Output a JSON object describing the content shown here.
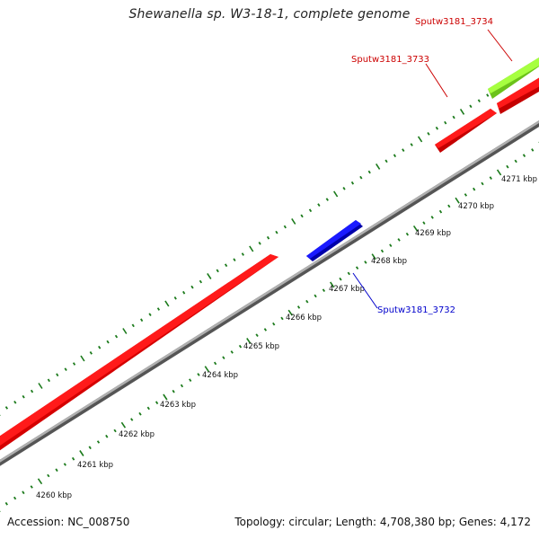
{
  "title": "Shewanella sp. W3-18-1, complete genome",
  "footer": {
    "accession": "Accession: NC_008750",
    "summary": "Topology: circular; Length: 4,708,380 bp; Genes: 4,172"
  },
  "colors": {
    "forward_gene": "#ff0000",
    "reverse_gene": "#0000ff",
    "rna_gene": "#99ff33",
    "backbone": "#8a8a8a",
    "ticks": "#1b7a1b",
    "label_red": "#cc0000",
    "label_blue": "#0000cc"
  },
  "scale_ticks": [
    {
      "label": "4260 kbp"
    },
    {
      "label": "4261 kbp"
    },
    {
      "label": "4262 kbp"
    },
    {
      "label": "4263 kbp"
    },
    {
      "label": "4264 kbp"
    },
    {
      "label": "4265 kbp"
    },
    {
      "label": "4266 kbp"
    },
    {
      "label": "4267 kbp"
    },
    {
      "label": "4268 kbp"
    },
    {
      "label": "4269 kbp"
    },
    {
      "label": "4270 kbp"
    },
    {
      "label": "4271 kbp"
    }
  ],
  "gene_labels": [
    {
      "text": "Sputw3181_3734",
      "color_key": "label_red"
    },
    {
      "text": "Sputw3181_3733",
      "color_key": "label_red"
    },
    {
      "text": "Sputw3181_3732",
      "color_key": "label_blue"
    }
  ]
}
